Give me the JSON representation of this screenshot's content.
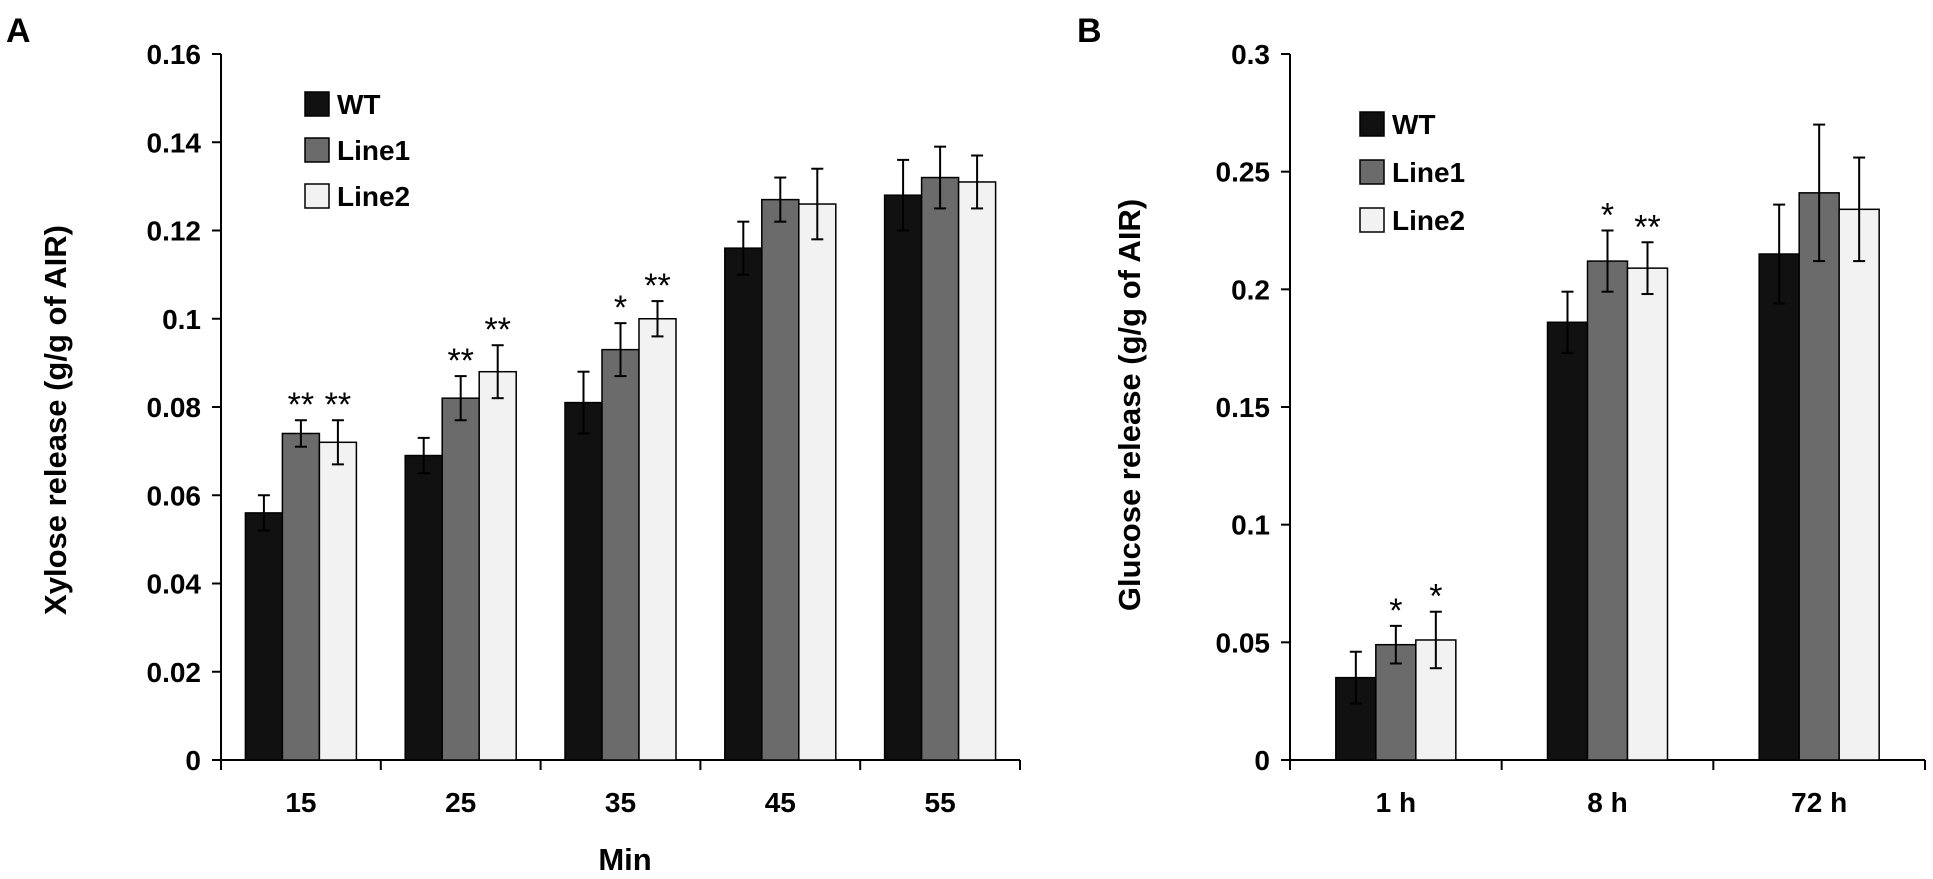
{
  "chart_data": [
    {
      "type": "bar",
      "panel_label": "A",
      "title": "",
      "xlabel": "Min",
      "ylabel": "Xylose release (g/g of AIR)",
      "ylim": [
        0,
        0.16
      ],
      "yticks": [
        "0",
        "0.02",
        "0.04",
        "0.06",
        "0.08",
        "0.1",
        "0.12",
        "0.14",
        "0.16"
      ],
      "categories": [
        "15",
        "25",
        "35",
        "45",
        "55"
      ],
      "legend_position": "top-left",
      "grid": false,
      "series": [
        {
          "name": "WT",
          "color": "#111111",
          "values": [
            0.056,
            0.069,
            0.081,
            0.116,
            0.128
          ],
          "errors": [
            0.004,
            0.004,
            0.007,
            0.006,
            0.008
          ],
          "significance": [
            "",
            "",
            "",
            "",
            ""
          ]
        },
        {
          "name": "Line1",
          "color": "#6b6b6b",
          "values": [
            0.074,
            0.082,
            0.093,
            0.127,
            0.132
          ],
          "errors": [
            0.003,
            0.005,
            0.006,
            0.005,
            0.007
          ],
          "significance": [
            "**",
            "**",
            "*",
            "",
            ""
          ]
        },
        {
          "name": "Line2",
          "color": "#f2f2f2",
          "values": [
            0.072,
            0.088,
            0.1,
            0.126,
            0.131
          ],
          "errors": [
            0.005,
            0.006,
            0.004,
            0.008,
            0.006
          ],
          "significance": [
            "**",
            "**",
            "**",
            "",
            ""
          ]
        }
      ]
    },
    {
      "type": "bar",
      "panel_label": "B",
      "title": "",
      "xlabel": "",
      "ylabel": "Glucose release (g/g of AIR)",
      "ylim": [
        0,
        0.3
      ],
      "yticks": [
        "0",
        "0.05",
        "0.1",
        "0.15",
        "0.2",
        "0.25",
        "0.3"
      ],
      "categories": [
        "1 h",
        "8 h",
        "72 h"
      ],
      "legend_position": "top-left",
      "grid": false,
      "series": [
        {
          "name": "WT",
          "color": "#111111",
          "values": [
            0.035,
            0.186,
            0.215
          ],
          "errors": [
            0.011,
            0.013,
            0.021
          ],
          "significance": [
            "",
            "",
            ""
          ]
        },
        {
          "name": "Line1",
          "color": "#6b6b6b",
          "values": [
            0.049,
            0.212,
            0.241
          ],
          "errors": [
            0.008,
            0.013,
            0.029
          ],
          "significance": [
            "*",
            "*",
            ""
          ]
        },
        {
          "name": "Line2",
          "color": "#f2f2f2",
          "values": [
            0.051,
            0.209,
            0.234
          ],
          "errors": [
            0.012,
            0.011,
            0.022
          ],
          "significance": [
            "*",
            "**",
            ""
          ]
        }
      ]
    }
  ]
}
